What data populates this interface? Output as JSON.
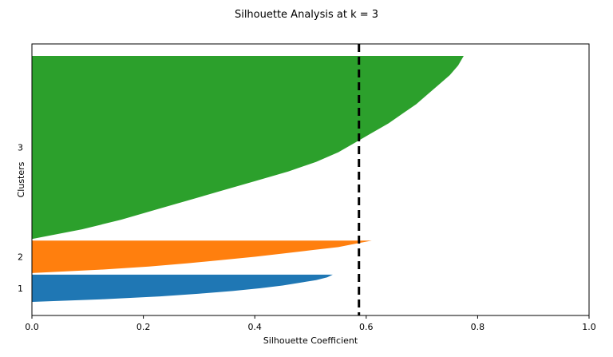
{
  "chart_data": {
    "type": "silhouette",
    "title": "Silhouette Analysis at k = 3",
    "xlabel": "Silhouette Coefficient",
    "ylabel": "Clusters",
    "xlim": [
      0.0,
      1.0
    ],
    "xticks": [
      0.0,
      0.2,
      0.4,
      0.6,
      0.8,
      1.0
    ],
    "xtick_labels": [
      "0.0",
      "0.2",
      "0.4",
      "0.6",
      "0.8",
      "1.0"
    ],
    "average_silhouette": 0.587,
    "clusters": [
      {
        "label": "1",
        "color": "#1f77b4",
        "relative_size": 0.105,
        "profile": [
          0.54,
          0.53,
          0.51,
          0.48,
          0.45,
          0.41,
          0.36,
          0.3,
          0.23,
          0.13,
          0.0
        ]
      },
      {
        "label": "2",
        "color": "#ff7f0e",
        "relative_size": 0.125,
        "profile": [
          0.61,
          0.58,
          0.55,
          0.5,
          0.45,
          0.4,
          0.34,
          0.28,
          0.21,
          0.12,
          0.0
        ]
      },
      {
        "label": "3",
        "color": "#2ca02c",
        "relative_size": 0.705,
        "profile": [
          0.775,
          0.765,
          0.75,
          0.73,
          0.71,
          0.69,
          0.665,
          0.64,
          0.61,
          0.58,
          0.55,
          0.51,
          0.46,
          0.4,
          0.34,
          0.28,
          0.22,
          0.16,
          0.09,
          0.0
        ]
      }
    ]
  }
}
